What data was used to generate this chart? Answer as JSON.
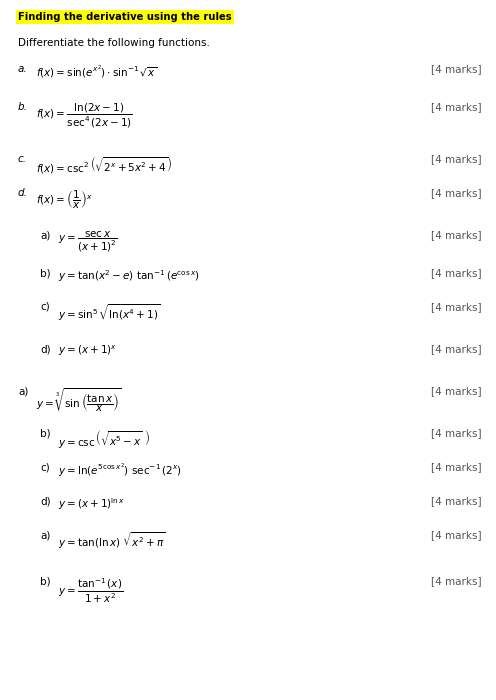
{
  "title": "Finding the derivative using the rules",
  "subtitle": "Differentiate the following functions.",
  "items": [
    {
      "label": "a.",
      "formula": "$f(x) = \\sin(e^{x^{2}}) \\cdot \\sin^{-1} \\sqrt{x}$",
      "marks": "[4 marks]",
      "indent": 0,
      "space_after": 38
    },
    {
      "label": "b.",
      "formula": "$f(x) = \\dfrac{\\ln(2x-1)}{\\sec^4(2x-1)}$",
      "marks": "[4 marks]",
      "indent": 0,
      "space_after": 52
    },
    {
      "label": "c.",
      "formula": "$f(x) = \\csc^2\\left(\\sqrt{2^x + 5x^2 + 4}\\right)$",
      "marks": "[4 marks]",
      "indent": 0,
      "space_after": 34
    },
    {
      "label": "d.",
      "formula": "$f(x) = \\left(\\dfrac{1}{x}\\right)^{x}$",
      "marks": "[4 marks]",
      "indent": 0,
      "space_after": 42
    },
    {
      "label": "a)",
      "formula": "$y = \\dfrac{\\sec x}{(x+1)^2}$",
      "marks": "[4 marks]",
      "indent": 1,
      "space_after": 38
    },
    {
      "label": "b)",
      "formula": "$y = \\tan(x^2 - e)\\ \\tan^{-1}(e^{\\cos x})$",
      "marks": "[4 marks]",
      "indent": 1,
      "space_after": 34
    },
    {
      "label": "c)",
      "formula": "$y = \\sin^5 \\sqrt{\\ln(x^4 + 1)}$",
      "marks": "[4 marks]",
      "indent": 1,
      "space_after": 42
    },
    {
      "label": "d)",
      "formula": "$y = (x + 1)^x$",
      "marks": "[4 marks]",
      "indent": 1,
      "space_after": 42
    },
    {
      "label": "a)",
      "formula": "$y = \\sqrt[3]{\\sin\\left(\\dfrac{\\tan x}{x}\\right)}$",
      "marks": "[4 marks]",
      "indent": 0,
      "space_after": 42
    },
    {
      "label": "b)",
      "formula": "$y = \\csc\\left(\\sqrt{x^5 - x}\\ \\right)$",
      "marks": "[4 marks]",
      "indent": 1,
      "space_after": 34
    },
    {
      "label": "c)",
      "formula": "$y = \\ln(e^{5\\cos x^2})\\ \\sec^{-1}(2^x)$",
      "marks": "[4 marks]",
      "indent": 1,
      "space_after": 34
    },
    {
      "label": "d)",
      "formula": "$y = (x + 1)^{\\ln x}$",
      "marks": "[4 marks]",
      "indent": 1,
      "space_after": 34
    },
    {
      "label": "a)",
      "formula": "$y = \\tan(\\ln x)\\ \\sqrt{x^2 + \\pi}$",
      "marks": "[4 marks]",
      "indent": 1,
      "space_after": 46
    },
    {
      "label": "b)",
      "formula": "$y = \\dfrac{\\tan^{-1}(x)}{1+x^2}$",
      "marks": "[4 marks]",
      "indent": 1,
      "space_after": 0
    }
  ],
  "bg_color": "#ffffff",
  "title_bg": "#ffff00",
  "title_color": "#000000",
  "text_color": "#000000",
  "marks_color": "#555555"
}
